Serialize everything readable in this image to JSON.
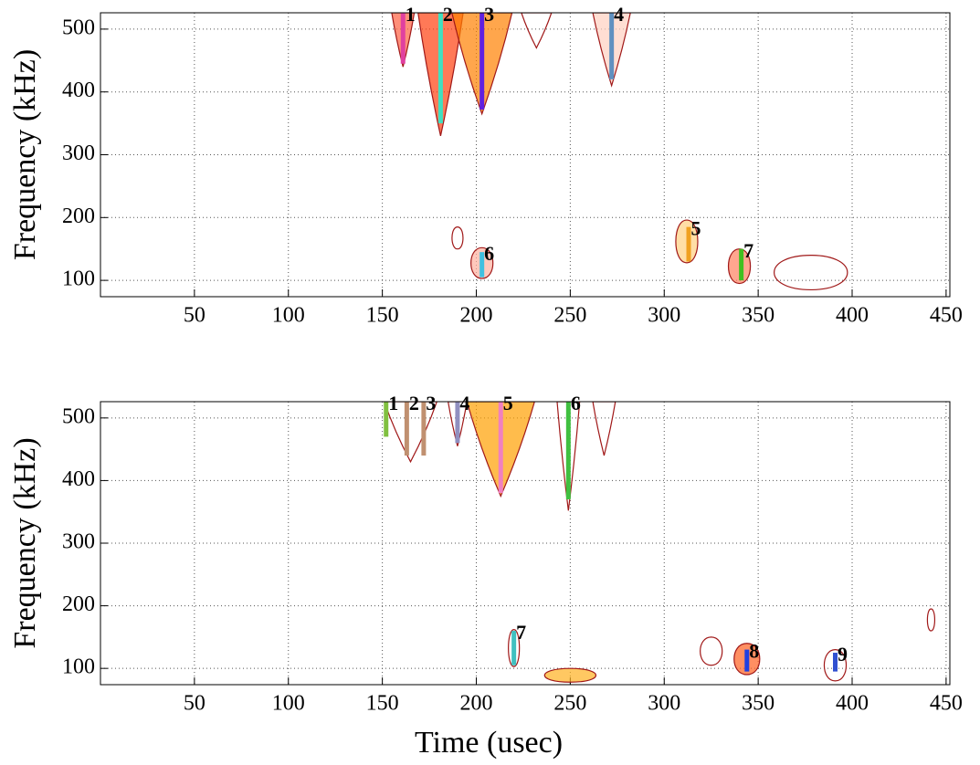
{
  "chart_data": [
    {
      "type": "contour",
      "ylabel": "Frequency (kHz)",
      "xlim": [
        0,
        452
      ],
      "ylim": [
        74,
        526
      ],
      "xticks": [
        50,
        100,
        150,
        200,
        250,
        300,
        350,
        400,
        450
      ],
      "yticks": [
        100,
        200,
        300,
        400,
        500
      ],
      "grid": true,
      "contour_color": "#a01818",
      "contours": [
        {
          "x": 161,
          "half_width": 6,
          "fmin": 440,
          "fmax": 526,
          "fill": "#ff6040"
        },
        {
          "x": 181,
          "half_width": 12,
          "fmin": 330,
          "fmax": 526,
          "fill": "#ff4010"
        },
        {
          "x": 203,
          "half_width": 16,
          "fmin": 365,
          "fmax": 526,
          "fill": "#ff8000"
        },
        {
          "x": 272,
          "half_width": 10,
          "fmin": 410,
          "fmax": 526,
          "fill": "#ffd0c0"
        },
        {
          "x": 232,
          "half_width": 8,
          "fmin": 470,
          "fmax": 526,
          "fill": "none"
        },
        {
          "x": 190,
          "half_width": 3,
          "fmin": 150,
          "fmax": 185,
          "fill": "none"
        },
        {
          "x": 203,
          "half_width": 6,
          "fmin": 103,
          "fmax": 152,
          "fill": "#ffb0a0"
        },
        {
          "x": 312,
          "half_width": 6,
          "fmin": 128,
          "fmax": 196,
          "fill": "#ffd080"
        },
        {
          "x": 340,
          "half_width": 6,
          "fmin": 95,
          "fmax": 150,
          "fill": "#ff8060"
        },
        {
          "x": 378,
          "half_width": 20,
          "fmin": 85,
          "fmax": 140,
          "fill": "none"
        }
      ],
      "ridges": [
        {
          "label": "1",
          "x": 161,
          "fmin": 445,
          "fmax": 526,
          "color": "#e040a0"
        },
        {
          "label": "2",
          "x": 181,
          "fmin": 350,
          "fmax": 526,
          "color": "#40e0c0"
        },
        {
          "label": "3",
          "x": 203,
          "fmin": 372,
          "fmax": 526,
          "color": "#6020e0"
        },
        {
          "label": "4",
          "x": 272,
          "fmin": 420,
          "fmax": 526,
          "color": "#6090c0"
        },
        {
          "label": "5",
          "x": 313,
          "fmin": 130,
          "fmax": 185,
          "color": "#f0a020"
        },
        {
          "label": "6",
          "x": 203,
          "fmin": 105,
          "fmax": 145,
          "color": "#40c0e0"
        },
        {
          "label": "7",
          "x": 341,
          "fmin": 100,
          "fmax": 150,
          "color": "#40c020"
        }
      ]
    },
    {
      "type": "contour",
      "ylabel": "Frequency (kHz)",
      "xlabel": "Time (usec)",
      "xlim": [
        0,
        452
      ],
      "ylim": [
        74,
        526
      ],
      "xticks": [
        50,
        100,
        150,
        200,
        250,
        300,
        350,
        400,
        450
      ],
      "yticks": [
        100,
        200,
        300,
        400,
        500
      ],
      "grid": true,
      "contour_color": "#a01818",
      "contours": [
        {
          "x": 165,
          "half_width": 14,
          "fmin": 430,
          "fmax": 526,
          "fill": "none"
        },
        {
          "x": 190,
          "half_width": 5,
          "fmin": 455,
          "fmax": 526,
          "fill": "none"
        },
        {
          "x": 213,
          "half_width": 18,
          "fmin": 375,
          "fmax": 526,
          "fill": "#ffa000"
        },
        {
          "x": 249,
          "half_width": 6,
          "fmin": 352,
          "fmax": 526,
          "fill": "none"
        },
        {
          "x": 268,
          "half_width": 6,
          "fmin": 440,
          "fmax": 526,
          "fill": "none"
        },
        {
          "x": 220,
          "half_width": 3,
          "fmin": 103,
          "fmax": 162,
          "fill": "none"
        },
        {
          "x": 250,
          "half_width": 14,
          "fmin": 78,
          "fmax": 100,
          "fill": "#ffb020"
        },
        {
          "x": 325,
          "half_width": 6,
          "fmin": 105,
          "fmax": 150,
          "fill": "none"
        },
        {
          "x": 344,
          "half_width": 7,
          "fmin": 90,
          "fmax": 140,
          "fill": "#ff6020"
        },
        {
          "x": 391,
          "half_width": 6,
          "fmin": 80,
          "fmax": 130,
          "fill": "none"
        },
        {
          "x": 442,
          "half_width": 2,
          "fmin": 160,
          "fmax": 195,
          "fill": "none"
        }
      ],
      "ridges": [
        {
          "label": "1",
          "x": 152,
          "fmin": 470,
          "fmax": 526,
          "color": "#80c040"
        },
        {
          "label": "2",
          "x": 163,
          "fmin": 440,
          "fmax": 526,
          "color": "#c09070"
        },
        {
          "label": "3",
          "x": 172,
          "fmin": 440,
          "fmax": 526,
          "color": "#c09070"
        },
        {
          "label": "4",
          "x": 190,
          "fmin": 460,
          "fmax": 526,
          "color": "#9090c0"
        },
        {
          "label": "5",
          "x": 213,
          "fmin": 380,
          "fmax": 526,
          "color": "#f080c0"
        },
        {
          "label": "6",
          "x": 249,
          "fmin": 370,
          "fmax": 526,
          "color": "#40c040"
        },
        {
          "label": "7",
          "x": 220,
          "fmin": 105,
          "fmax": 160,
          "color": "#40c0c0"
        },
        {
          "label": "8",
          "x": 344,
          "fmin": 95,
          "fmax": 130,
          "color": "#2040e0"
        },
        {
          "label": "9",
          "x": 391,
          "fmin": 95,
          "fmax": 125,
          "color": "#3050d0"
        }
      ]
    }
  ]
}
